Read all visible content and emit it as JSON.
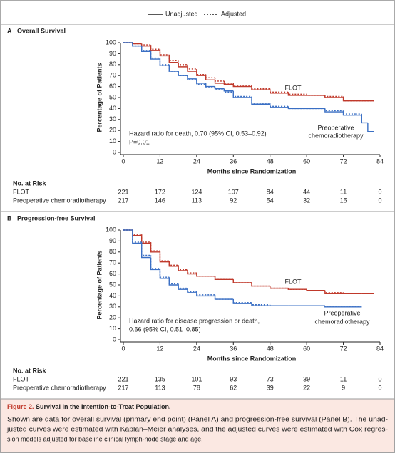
{
  "legend": [
    {
      "name": "Unadjusted",
      "dash": "none"
    },
    {
      "name": "Adjusted",
      "dash": "2 2"
    }
  ],
  "chart_data": [
    {
      "type": "step",
      "panel": "A",
      "title": "Overall Survival",
      "x_label": "Months since Randomization",
      "y_label": "Percentage of Patients",
      "xlim": [
        0,
        84
      ],
      "xticks": [
        0,
        12,
        24,
        36,
        48,
        60,
        72,
        84
      ],
      "ylim": [
        0,
        100
      ],
      "yticks": [
        0,
        10,
        20,
        30,
        40,
        50,
        60,
        70,
        80,
        90,
        100
      ],
      "annotation_lines": [
        "Hazard ratio for death, 0.70 (95% CI, 0.53–0.92)",
        "P=0.01"
      ],
      "series": [
        {
          "name": "FLOT",
          "color": "#c0392b",
          "label_lines": [
            "FLOT"
          ],
          "x": [
            0,
            3,
            6,
            9,
            12,
            15,
            18,
            21,
            24,
            27,
            30,
            33,
            36,
            42,
            48,
            54,
            60,
            66,
            72,
            78,
            82
          ],
          "values": [
            100,
            99,
            97,
            93,
            88,
            82,
            78,
            74,
            70,
            66,
            63,
            62,
            60,
            57,
            54,
            52,
            52,
            50,
            47,
            47,
            47
          ],
          "adjusted": [
            100,
            99,
            98,
            94,
            89,
            84,
            80,
            76,
            71,
            68,
            65,
            63,
            61,
            58,
            55,
            53,
            52,
            51,
            47,
            47,
            47
          ]
        },
        {
          "name": "Preoperative chemoradiotherapy",
          "color": "#3a6fc4",
          "label_lines": [
            "Preoperative",
            "chemoradiotherapy"
          ],
          "x": [
            0,
            3,
            6,
            9,
            12,
            15,
            18,
            21,
            24,
            27,
            30,
            33,
            36,
            42,
            48,
            54,
            60,
            66,
            72,
            76,
            78,
            80,
            82
          ],
          "values": [
            100,
            97,
            92,
            85,
            79,
            74,
            70,
            67,
            63,
            60,
            58,
            56,
            50,
            44,
            41,
            40,
            40,
            37,
            34,
            34,
            27,
            19,
            19
          ],
          "adjusted": [
            100,
            97,
            93,
            86,
            80,
            74,
            70,
            66,
            62,
            59,
            57,
            55,
            51,
            45,
            42,
            40,
            40,
            38,
            35,
            35,
            34,
            null,
            null
          ]
        }
      ],
      "risk_table": {
        "title": "No. at Risk",
        "rows": [
          {
            "label": "FLOT",
            "counts": [
              "221",
              "172",
              "124",
              "107",
              "84",
              "44",
              "11",
              "0"
            ]
          },
          {
            "label": "Preoperative chemoradiotherapy",
            "counts": [
              "217",
              "146",
              "113",
              "92",
              "54",
              "32",
              "15",
              "0"
            ]
          }
        ]
      }
    },
    {
      "type": "step",
      "panel": "B",
      "title": "Progression-free Survival",
      "x_label": "Months since Randomization",
      "y_label": "Percentage of Patients",
      "xlim": [
        0,
        84
      ],
      "xticks": [
        0,
        12,
        24,
        36,
        48,
        60,
        72,
        84
      ],
      "ylim": [
        0,
        100
      ],
      "yticks": [
        0,
        10,
        20,
        30,
        40,
        50,
        60,
        70,
        80,
        90,
        100
      ],
      "annotation_lines": [
        "Hazard ratio for disease progression or death,",
        "0.66 (95% CI, 0.51–0.85)"
      ],
      "series": [
        {
          "name": "FLOT",
          "color": "#c0392b",
          "label_lines": [
            "FLOT"
          ],
          "x": [
            0,
            3,
            6,
            9,
            12,
            15,
            18,
            21,
            24,
            30,
            36,
            42,
            48,
            54,
            60,
            66,
            72,
            78,
            82
          ],
          "values": [
            100,
            95,
            88,
            80,
            71,
            67,
            63,
            60,
            58,
            55,
            52,
            49,
            47,
            46,
            45,
            42,
            42,
            42,
            42
          ],
          "adjusted": [
            100,
            96,
            89,
            81,
            72,
            68,
            64,
            61,
            58,
            55,
            52,
            49,
            47,
            46,
            45,
            43,
            42,
            42,
            42
          ]
        },
        {
          "name": "Preoperative chemoradiotherapy",
          "color": "#3a6fc4",
          "label_lines": [
            "Preoperative",
            "chemoradiotherapy"
          ],
          "x": [
            0,
            3,
            6,
            9,
            12,
            15,
            18,
            21,
            24,
            30,
            36,
            42,
            48,
            54,
            60,
            66,
            72,
            78
          ],
          "values": [
            100,
            88,
            75,
            64,
            56,
            50,
            46,
            43,
            40,
            37,
            33,
            31,
            31,
            31,
            31,
            30,
            30,
            30
          ],
          "adjusted": [
            100,
            89,
            77,
            65,
            57,
            51,
            47,
            44,
            41,
            37,
            34,
            32,
            31,
            31,
            31,
            30,
            30,
            30
          ]
        }
      ],
      "risk_table": {
        "title": "No. at Risk",
        "rows": [
          {
            "label": "FLOT",
            "counts": [
              "221",
              "135",
              "101",
              "93",
              "73",
              "39",
              "11",
              "0"
            ]
          },
          {
            "label": "Preoperative chemoradiotherapy",
            "counts": [
              "217",
              "113",
              "78",
              "62",
              "39",
              "22",
              "9",
              "0"
            ]
          }
        ]
      }
    }
  ],
  "caption": {
    "label": "Figure 2.",
    "title": "Survival in the Intention-to-Treat Population.",
    "lines": [
      "Shown are data for overall survival (primary end point) (Panel A) and progression-free survival (Panel B). The unad-",
      "justed curves were estimated with Kaplan–Meier analyses, and the adjusted curves were estimated with Cox regres-",
      "sion models adjusted for baseline clinical lymph-node stage and age."
    ]
  }
}
